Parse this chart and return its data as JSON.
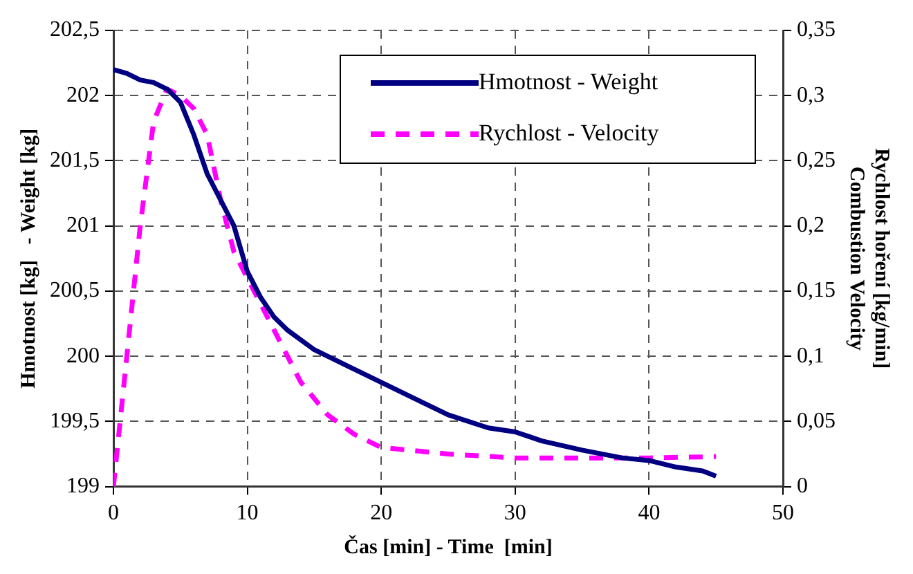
{
  "chart_data": {
    "type": "line",
    "xlabel": "Čas [min] - Time  [min]",
    "ylabel": "Hmotnost [kg]   - Weight [kg]",
    "y2label": "Rychlost hoření [kg/min]\nCombustion Velocity",
    "series": [
      {
        "name": "Hmotnost - Weight",
        "color": "#000080",
        "line_style": "solid",
        "x": [
          0,
          1,
          2,
          3,
          4,
          5,
          6,
          7,
          8,
          9,
          10,
          11,
          12,
          13,
          15,
          17,
          20,
          23,
          25,
          28,
          30,
          32,
          35,
          38,
          40,
          42,
          44,
          45
        ],
        "values": [
          202.2,
          202.17,
          202.12,
          202.1,
          202.05,
          201.95,
          201.7,
          201.4,
          201.2,
          201.0,
          200.65,
          200.45,
          200.3,
          200.2,
          200.05,
          199.95,
          199.8,
          199.65,
          199.55,
          199.45,
          199.42,
          199.35,
          199.28,
          199.22,
          199.2,
          199.15,
          199.12,
          199.08
        ]
      },
      {
        "name": "Rychlost - Velocity",
        "color": "#ff00ff",
        "line_style": "dashed",
        "axis": "y2",
        "x": [
          0,
          1,
          2,
          3,
          4,
          5,
          6,
          7,
          8,
          9,
          10,
          12,
          14,
          16,
          18,
          20,
          22,
          25,
          30,
          35,
          40,
          45
        ],
        "values": [
          0,
          0.1,
          0.2,
          0.28,
          0.305,
          0.3,
          0.29,
          0.27,
          0.22,
          0.18,
          0.16,
          0.12,
          0.08,
          0.055,
          0.04,
          0.03,
          0.028,
          0.025,
          0.022,
          0.022,
          0.022,
          0.023
        ]
      }
    ],
    "xlim": [
      0,
      50
    ],
    "xticks": [
      0,
      10,
      20,
      30,
      40,
      50
    ],
    "ylim": [
      199,
      202.5
    ],
    "yticks": [
      {
        "value": 199,
        "label": "199"
      },
      {
        "value": 199.5,
        "label": "199,5"
      },
      {
        "value": 200,
        "label": "200"
      },
      {
        "value": 200.5,
        "label": "200,5"
      },
      {
        "value": 201,
        "label": "201"
      },
      {
        "value": 201.5,
        "label": "201,5"
      },
      {
        "value": 202,
        "label": "202"
      },
      {
        "value": 202.5,
        "label": "202,5"
      }
    ],
    "y2lim": [
      0,
      0.35
    ],
    "y2ticks": [
      {
        "value": 0,
        "label": "0"
      },
      {
        "value": 0.05,
        "label": "0,05"
      },
      {
        "value": 0.1,
        "label": "0,1"
      },
      {
        "value": 0.15,
        "label": "0,15"
      },
      {
        "value": 0.2,
        "label": "0,2"
      },
      {
        "value": 0.25,
        "label": "0,25"
      },
      {
        "value": 0.3,
        "label": "0,3"
      },
      {
        "value": 0.35,
        "label": "0,35"
      }
    ],
    "grid": true,
    "legend": "top right",
    "marker": "none"
  }
}
